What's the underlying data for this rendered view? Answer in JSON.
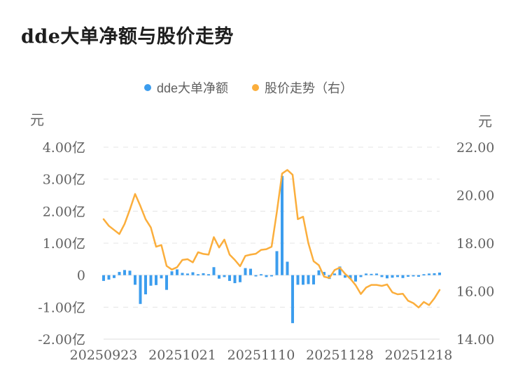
{
  "title": "dde大单净额与股价走势",
  "legend": {
    "items": [
      {
        "label": "dde大单净额",
        "color": "#3C9DEE"
      },
      {
        "label": "股价走势（右）",
        "color": "#FBAE3C"
      }
    ]
  },
  "chart_data": {
    "type": "combo",
    "title": "dde大单净额与股价走势",
    "grid": true,
    "legend_position": "top",
    "x_tick_labels": [
      "20250923",
      "20251021",
      "20251110",
      "20251128",
      "20251218"
    ],
    "x_tick_indices": [
      0,
      15,
      30,
      45,
      60
    ],
    "left_axis": {
      "unit": "元",
      "tick_labels": [
        "4.00亿",
        "3.00亿",
        "2.00亿",
        "1.00亿",
        "0",
        "-1.00亿",
        "-2.00亿"
      ],
      "tick_values": [
        4,
        3,
        2,
        1,
        0,
        -1,
        -2
      ],
      "range": [
        -2,
        4
      ]
    },
    "right_axis": {
      "unit": "元",
      "tick_labels": [
        "22.00",
        "20.00",
        "18.00",
        "16.00",
        "14.00"
      ],
      "tick_values": [
        22,
        20,
        18,
        16,
        14
      ],
      "range": [
        14,
        22
      ]
    },
    "series": [
      {
        "name": "dde大单净额",
        "type": "bar",
        "axis": "left",
        "unit": "亿",
        "color": "#3C9DEE",
        "values": [
          -0.18,
          -0.14,
          -0.09,
          0.1,
          0.16,
          0.14,
          -0.3,
          -0.9,
          -0.6,
          -0.33,
          -0.31,
          -0.1,
          -0.46,
          0.12,
          0.18,
          0.07,
          0.05,
          0.09,
          0.03,
          0.06,
          0.03,
          0.25,
          -0.11,
          -0.06,
          -0.18,
          -0.25,
          -0.22,
          0.22,
          0.2,
          -0.04,
          0.03,
          -0.06,
          -0.02,
          0.75,
          3.1,
          0.42,
          -1.5,
          -0.3,
          -0.3,
          -0.28,
          -0.29,
          0.15,
          0.1,
          -0.12,
          0.05,
          0.27,
          -0.08,
          -0.12,
          -0.2,
          -0.06,
          0.05,
          0.04,
          0.05,
          -0.06,
          -0.1,
          -0.08,
          -0.06,
          -0.09,
          -0.05,
          -0.04,
          -0.05,
          0.03,
          0.05,
          0.06,
          0.08
        ]
      },
      {
        "name": "股价走势（右）",
        "type": "line",
        "axis": "right",
        "unit": "元",
        "color": "#FBAE3C",
        "values": [
          19.0,
          18.72,
          18.55,
          18.38,
          18.8,
          19.4,
          20.05,
          19.55,
          19.0,
          18.65,
          17.85,
          17.92,
          17.05,
          16.9,
          17.0,
          17.3,
          17.33,
          17.2,
          17.62,
          17.55,
          17.52,
          18.25,
          17.82,
          18.15,
          17.52,
          17.3,
          17.04,
          17.47,
          17.52,
          17.56,
          17.72,
          17.75,
          17.85,
          19.3,
          20.9,
          21.05,
          20.85,
          19.0,
          19.1,
          18.0,
          17.25,
          17.08,
          16.6,
          16.55,
          16.88,
          16.98,
          16.72,
          16.52,
          16.25,
          15.88,
          16.15,
          16.26,
          16.26,
          16.22,
          16.28,
          15.95,
          15.87,
          15.89,
          15.6,
          15.5,
          15.32,
          15.55,
          15.42,
          15.7,
          16.05
        ]
      }
    ]
  }
}
